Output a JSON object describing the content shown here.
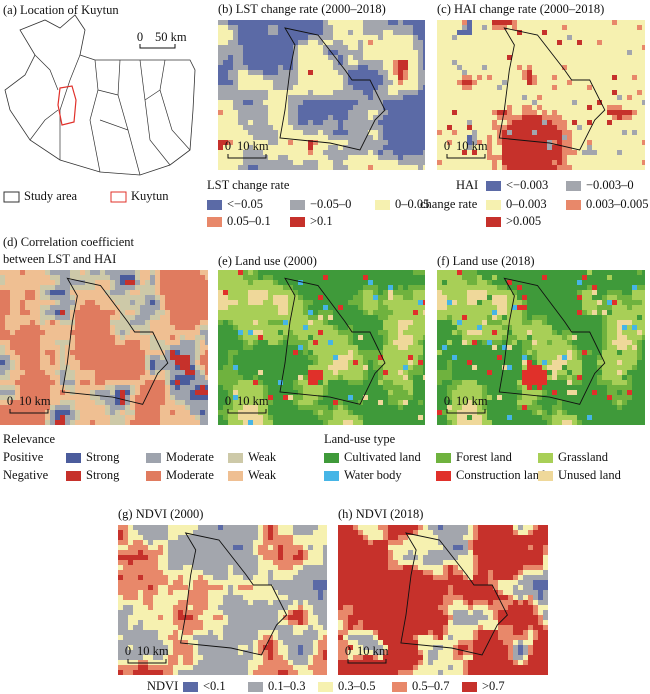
{
  "panels": {
    "a": {
      "title": "(a) Location of Kuytun",
      "scale": [
        "0",
        "50 km"
      ],
      "legend": [
        {
          "label": "Study area",
          "color": "#333333"
        },
        {
          "label": "Kuytun",
          "color": "#e0302a"
        }
      ]
    },
    "b": {
      "title": "(b) LST change rate (2000–2018)",
      "scale": [
        "0",
        "10 km"
      ]
    },
    "c": {
      "title": "(c) HAI change rate (2000–2018)",
      "scale": [
        "0",
        "10 km"
      ]
    },
    "d": {
      "title": [
        "(d) Correlation coefficient",
        "between LST and HAI"
      ],
      "scale": [
        "0",
        "10 km"
      ]
    },
    "e": {
      "title": "(e) Land use (2000)",
      "scale": [
        "0",
        "10 km"
      ]
    },
    "f": {
      "title": "(f) Land use (2018)",
      "scale": [
        "0",
        "10 km"
      ]
    },
    "g": {
      "title": "(g) NDVI (2000)",
      "scale": [
        "0",
        "10 km"
      ]
    },
    "h": {
      "title": "(h) NDVI (2018)",
      "scale": [
        "0",
        "10 km"
      ]
    }
  },
  "legends": {
    "lst": {
      "title": "LST change rate",
      "items": [
        {
          "label": "<−0.05",
          "color": "#5b6aa6"
        },
        {
          "label": "−0.05–0",
          "color": "#a3a6ad"
        },
        {
          "label": "0–0.05",
          "color": "#f6f1b0"
        },
        {
          "label": "0.05–0.1",
          "color": "#e8886a"
        },
        {
          "label": ">0.1",
          "color": "#c6312b"
        }
      ]
    },
    "hai": {
      "title": [
        "HAI",
        "change rate"
      ],
      "items": [
        {
          "label": "<−0.003",
          "color": "#5b6aa6"
        },
        {
          "label": "−0.003–0",
          "color": "#a3a6ad"
        },
        {
          "label": "0–0.003",
          "color": "#f6f1b0"
        },
        {
          "label": "0.003–0.005",
          "color": "#e8886a"
        },
        {
          "label": ">0.005",
          "color": "#c6312b"
        }
      ]
    },
    "relevance": {
      "title": "Relevance",
      "rows": [
        {
          "name": "Positive",
          "items": [
            {
              "label": "Strong",
              "color": "#4b5c9c"
            },
            {
              "label": "Moderate",
              "color": "#9ea3ad"
            },
            {
              "label": "Weak",
              "color": "#cdc9a8"
            }
          ]
        },
        {
          "name": "Negative",
          "items": [
            {
              "label": "Strong",
              "color": "#c6312b"
            },
            {
              "label": "Moderate",
              "color": "#e07b5f"
            },
            {
              "label": "Weak",
              "color": "#efbf92"
            }
          ]
        }
      ]
    },
    "landuse": {
      "title": "Land-use type",
      "items": [
        {
          "label": "Cultivated land",
          "color": "#3f9a3a"
        },
        {
          "label": "Forest land",
          "color": "#6fb23e"
        },
        {
          "label": "Grassland",
          "color": "#a8cf57"
        },
        {
          "label": "Water body",
          "color": "#46b5e6"
        },
        {
          "label": "Construction land",
          "color": "#e0302a"
        },
        {
          "label": "Unused land",
          "color": "#efd89a"
        }
      ]
    },
    "ndvi": {
      "title": "NDVI",
      "items": [
        {
          "label": "<0.1",
          "color": "#5b6aa6"
        },
        {
          "label": "0.1–0.3",
          "color": "#a3a6ad"
        },
        {
          "label": "0.3–0.5",
          "color": "#f6f1b0"
        },
        {
          "label": "0.5–0.7",
          "color": "#e8886a"
        },
        {
          "label": ">0.7",
          "color": "#c6312b"
        }
      ]
    }
  }
}
